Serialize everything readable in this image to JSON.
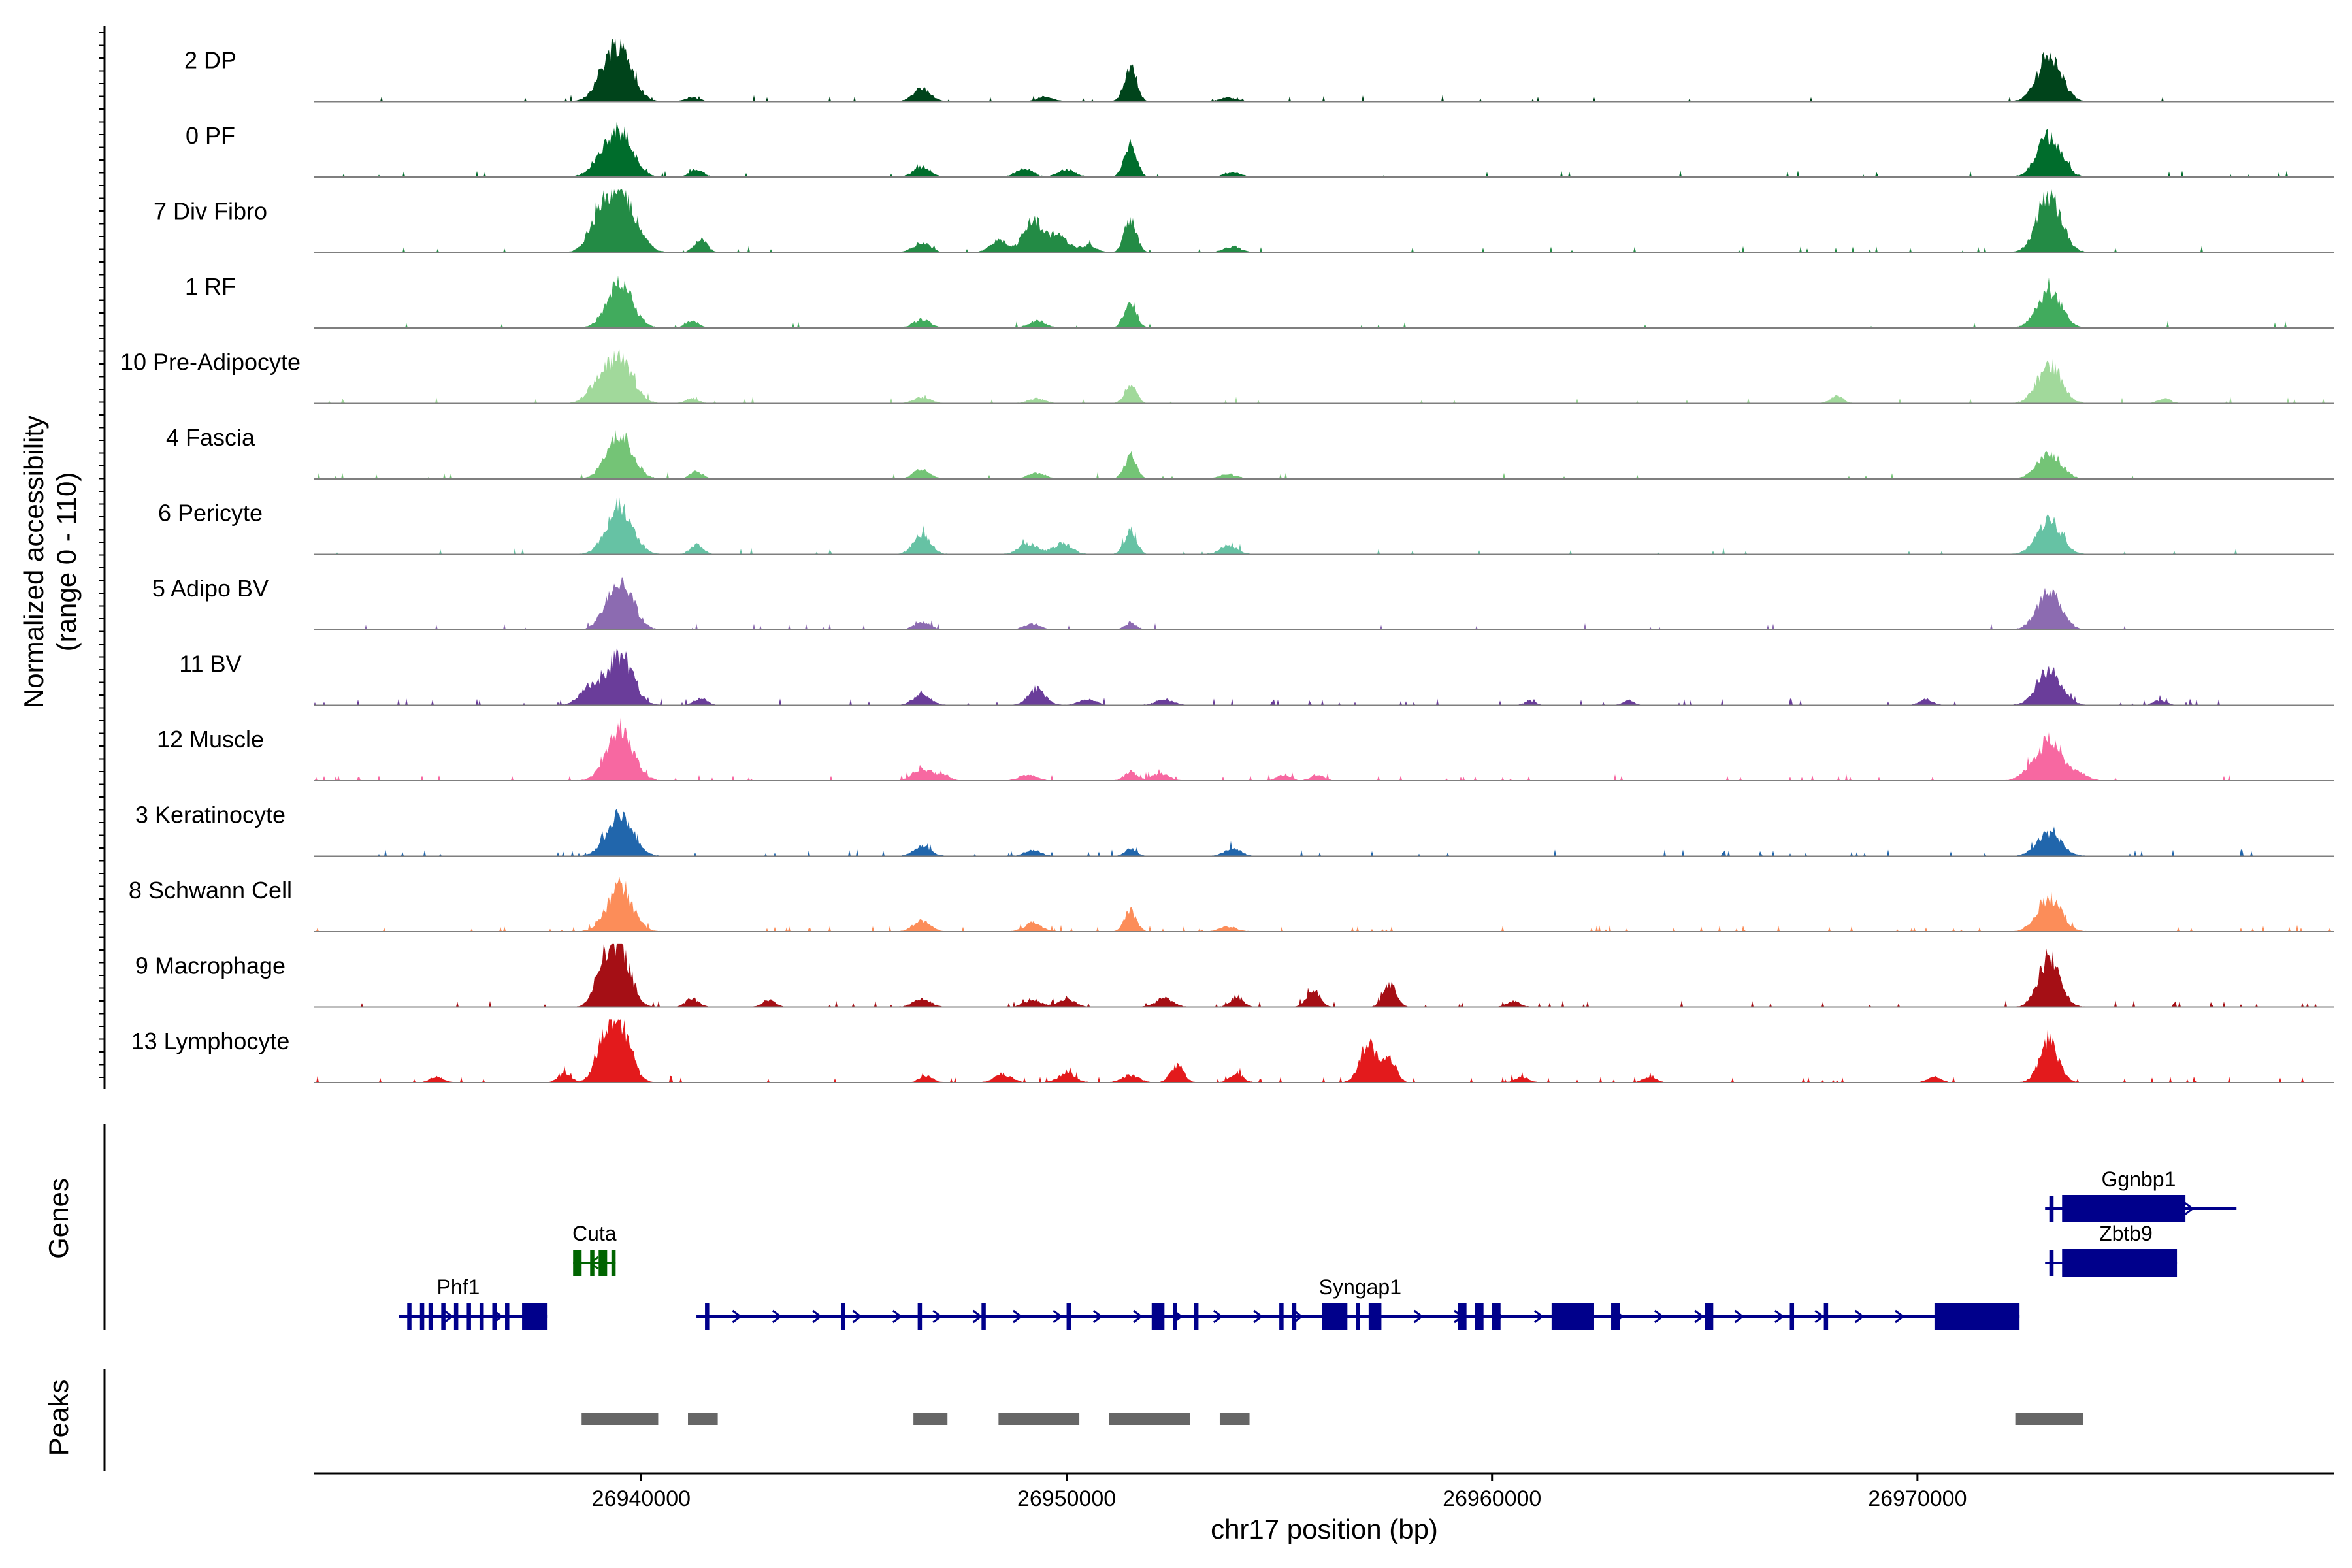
{
  "chart_data": {
    "type": "area",
    "subtype": "genome-coverage-tracks",
    "xlabel": "chr17 position (bp)",
    "ylabel": [
      "Normalized accessibility",
      "(range 0 - 110)"
    ],
    "xlim": [
      26932300,
      26979800
    ],
    "x_ticks": [
      26940000,
      26950000,
      26960000,
      26970000
    ],
    "x_tick_labels": [
      "26940000",
      "26950000",
      "26960000",
      "26970000"
    ],
    "ylim": [
      0,
      110
    ],
    "gene_panel_title": "Genes",
    "peaks_panel_title": "Peaks",
    "tracks": [
      {
        "label": "2 DP",
        "color": "#00441b",
        "peaks": [
          [
            26939500,
            90,
            300
          ],
          [
            26939100,
            25,
            250
          ],
          [
            26941200,
            8,
            150
          ],
          [
            26946600,
            22,
            200
          ],
          [
            26949500,
            8,
            200
          ],
          [
            26951500,
            62,
            140
          ],
          [
            26953800,
            6,
            200
          ],
          [
            26973100,
            78,
            280
          ]
        ]
      },
      {
        "label": "0 PF",
        "color": "#006d2c",
        "peaks": [
          [
            26939500,
            75,
            300
          ],
          [
            26939000,
            18,
            250
          ],
          [
            26941300,
            14,
            150
          ],
          [
            26946600,
            18,
            200
          ],
          [
            26949000,
            14,
            200
          ],
          [
            26950000,
            12,
            200
          ],
          [
            26951500,
            60,
            140
          ],
          [
            26953900,
            8,
            200
          ],
          [
            26973100,
            70,
            280
          ]
        ]
      },
      {
        "label": "7 Div Fibro",
        "color": "#238b45",
        "peaks": [
          [
            26939500,
            105,
            350
          ],
          [
            26939000,
            40,
            250
          ],
          [
            26941400,
            22,
            150
          ],
          [
            26946600,
            16,
            200
          ],
          [
            26948400,
            20,
            200
          ],
          [
            26949200,
            55,
            220
          ],
          [
            26949800,
            30,
            220
          ],
          [
            26950500,
            12,
            200
          ],
          [
            26951500,
            60,
            140
          ],
          [
            26953900,
            10,
            200
          ],
          [
            26973100,
            100,
            280
          ]
        ]
      },
      {
        "label": "1 RF",
        "color": "#41ab5d",
        "peaks": [
          [
            26939500,
            75,
            300
          ],
          [
            26941200,
            12,
            150
          ],
          [
            26946600,
            14,
            200
          ],
          [
            26949300,
            12,
            200
          ],
          [
            26951500,
            45,
            140
          ],
          [
            26973100,
            62,
            280
          ]
        ]
      },
      {
        "label": "10 Pre-Adipocyte",
        "color": "#a1d99b",
        "peaks": [
          [
            26939500,
            75,
            300
          ],
          [
            26939000,
            30,
            250
          ],
          [
            26941200,
            8,
            150
          ],
          [
            26946600,
            10,
            200
          ],
          [
            26949300,
            8,
            200
          ],
          [
            26951500,
            30,
            140
          ],
          [
            26968100,
            12,
            150
          ],
          [
            26973100,
            65,
            280
          ],
          [
            26975800,
            8,
            150
          ]
        ]
      },
      {
        "label": "4 Fascia",
        "color": "#74c476",
        "peaks": [
          [
            26939500,
            75,
            300
          ],
          [
            26941300,
            12,
            150
          ],
          [
            26946600,
            16,
            200
          ],
          [
            26949300,
            10,
            200
          ],
          [
            26951500,
            40,
            140
          ],
          [
            26953800,
            8,
            200
          ],
          [
            26973100,
            42,
            280
          ]
        ]
      },
      {
        "label": "6 Pericyte",
        "color": "#66c2a4",
        "peaks": [
          [
            26939500,
            82,
            300
          ],
          [
            26941300,
            16,
            150
          ],
          [
            26946600,
            35,
            200
          ],
          [
            26949100,
            18,
            220
          ],
          [
            26949900,
            18,
            220
          ],
          [
            26951500,
            40,
            140
          ],
          [
            26953800,
            15,
            200
          ],
          [
            26973100,
            60,
            280
          ]
        ]
      },
      {
        "label": "5 Adipo BV",
        "color": "#8c6bb1",
        "peaks": [
          [
            26939500,
            85,
            300
          ],
          [
            26946600,
            12,
            200
          ],
          [
            26949200,
            10,
            200
          ],
          [
            26951500,
            12,
            140
          ],
          [
            26973100,
            65,
            280
          ]
        ]
      },
      {
        "label": "11 BV",
        "color": "#6a3d9a",
        "peaks": [
          [
            26939500,
            85,
            300
          ],
          [
            26938800,
            30,
            250
          ],
          [
            26941400,
            12,
            150
          ],
          [
            26946600,
            18,
            200
          ],
          [
            26949300,
            28,
            200
          ],
          [
            26950500,
            10,
            200
          ],
          [
            26952300,
            10,
            200
          ],
          [
            26960900,
            8,
            120
          ],
          [
            26963200,
            8,
            120
          ],
          [
            26970200,
            10,
            150
          ],
          [
            26973100,
            62,
            280
          ],
          [
            26975700,
            8,
            150
          ]
        ]
      },
      {
        "label": "12 Muscle",
        "color": "#f768a1",
        "peaks": [
          [
            26939500,
            90,
            300
          ],
          [
            26946600,
            22,
            200
          ],
          [
            26947100,
            10,
            150
          ],
          [
            26949100,
            10,
            200
          ],
          [
            26951500,
            15,
            140
          ],
          [
            26952200,
            12,
            200
          ],
          [
            26955100,
            10,
            150
          ],
          [
            26955900,
            10,
            150
          ],
          [
            26973100,
            68,
            280
          ],
          [
            26972600,
            12,
            200
          ],
          [
            26973800,
            12,
            200
          ]
        ]
      },
      {
        "label": "3 Keratinocyte",
        "color": "#2166ac",
        "peaks": [
          [
            26939500,
            72,
            300
          ],
          [
            26946600,
            16,
            200
          ],
          [
            26949200,
            10,
            200
          ],
          [
            26951500,
            12,
            140
          ],
          [
            26953900,
            12,
            200
          ],
          [
            26973100,
            40,
            280
          ]
        ]
      },
      {
        "label": "8 Schwann Cell",
        "color": "#fc8d59",
        "peaks": [
          [
            26939500,
            70,
            300
          ],
          [
            26946600,
            18,
            200
          ],
          [
            26949200,
            15,
            200
          ],
          [
            26951500,
            35,
            140
          ],
          [
            26953800,
            8,
            200
          ],
          [
            26973100,
            58,
            280
          ]
        ]
      },
      {
        "label": "9 Macrophage",
        "color": "#a50f15",
        "peaks": [
          [
            26939500,
            100,
            250
          ],
          [
            26939100,
            60,
            200
          ],
          [
            26941200,
            15,
            150
          ],
          [
            26943000,
            12,
            150
          ],
          [
            26946600,
            14,
            200
          ],
          [
            26949200,
            12,
            200
          ],
          [
            26950000,
            14,
            200
          ],
          [
            26952300,
            15,
            200
          ],
          [
            26954000,
            18,
            150
          ],
          [
            26955800,
            30,
            150
          ],
          [
            26957600,
            38,
            150
          ],
          [
            26960500,
            10,
            150
          ],
          [
            26973100,
            85,
            250
          ]
        ]
      },
      {
        "label": "13 Lymphocyte",
        "color": "#e31a1c",
        "peaks": [
          [
            26939500,
            100,
            250
          ],
          [
            26939100,
            55,
            200
          ],
          [
            26938200,
            15,
            150
          ],
          [
            26935200,
            10,
            150
          ],
          [
            26946700,
            12,
            150
          ],
          [
            26948500,
            14,
            200
          ],
          [
            26950000,
            14,
            200
          ],
          [
            26951500,
            12,
            200
          ],
          [
            26952600,
            30,
            150
          ],
          [
            26954000,
            15,
            150
          ],
          [
            26957100,
            65,
            200
          ],
          [
            26957600,
            40,
            150
          ],
          [
            26960700,
            10,
            150
          ],
          [
            26963700,
            10,
            150
          ],
          [
            26970400,
            10,
            150
          ],
          [
            26973100,
            68,
            220
          ]
        ]
      }
    ],
    "genes": [
      {
        "name": "Phf1",
        "row": 2,
        "strand": "+",
        "color": "#00008b",
        "start": 26934300,
        "end": 26937800,
        "exons": [
          [
            26934500,
            26934600
          ],
          [
            26934800,
            26934900
          ],
          [
            26935000,
            26935100
          ],
          [
            26935300,
            26935400
          ],
          [
            26935600,
            26935700
          ],
          [
            26935900,
            26936000
          ],
          [
            26936200,
            26936300
          ],
          [
            26936500,
            26936600
          ],
          [
            26936800,
            26936900
          ],
          [
            26937200,
            26937800
          ]
        ],
        "label_x": 26935700
      },
      {
        "name": "Cuta",
        "row": 1,
        "strand": "-",
        "color": "#006400",
        "start": 26938400,
        "end": 26939400,
        "exons": [
          [
            26938400,
            26938600
          ],
          [
            26938800,
            26938900
          ],
          [
            26939000,
            26939200
          ],
          [
            26939300,
            26939400
          ]
        ],
        "label_x": 26938900
      },
      {
        "name": "Syngap1",
        "row": 2,
        "strand": "+",
        "color": "#00008b",
        "start": 26941300,
        "end": 26972400,
        "exons": [
          [
            26941500,
            26941600
          ],
          [
            26944700,
            26944800
          ],
          [
            26946500,
            26946600
          ],
          [
            26948000,
            26948100
          ],
          [
            26950000,
            26950100
          ],
          [
            26952000,
            26952300
          ],
          [
            26952500,
            26952600
          ],
          [
            26953000,
            26953100
          ],
          [
            26955000,
            26955100
          ],
          [
            26955300,
            26955400
          ],
          [
            26956000,
            26956600
          ],
          [
            26956800,
            26956900
          ],
          [
            26957100,
            26957400
          ],
          [
            26959200,
            26959400
          ],
          [
            26959600,
            26959800
          ],
          [
            26960000,
            26960200
          ],
          [
            26961400,
            26962400
          ],
          [
            26962800,
            26963000
          ],
          [
            26965000,
            26965200
          ],
          [
            26967000,
            26967100
          ],
          [
            26967800,
            26967900
          ],
          [
            26970400,
            26972400
          ]
        ],
        "label_x": 26956900
      },
      {
        "name": "Ggnbp1",
        "row": 0,
        "strand": "+",
        "color": "#00008b",
        "start": 26973000,
        "end": 26977500,
        "exons": [
          [
            26973100,
            26973200
          ],
          [
            26973400,
            26976300
          ]
        ],
        "label_x": 26975200
      },
      {
        "name": "Zbtb9",
        "row": 1,
        "strand": "+",
        "color": "#00008b",
        "start": 26973000,
        "end": 26976100,
        "exons": [
          [
            26973100,
            26973200
          ],
          [
            26973400,
            26976100
          ]
        ],
        "label_x": 26974900
      }
    ],
    "peak_regions": [
      [
        26938600,
        26940400
      ],
      [
        26941100,
        26941800
      ],
      [
        26946400,
        26947200
      ],
      [
        26948400,
        26950300
      ],
      [
        26951000,
        26952900
      ],
      [
        26953600,
        26954300
      ],
      [
        26972300,
        26973900
      ]
    ]
  }
}
